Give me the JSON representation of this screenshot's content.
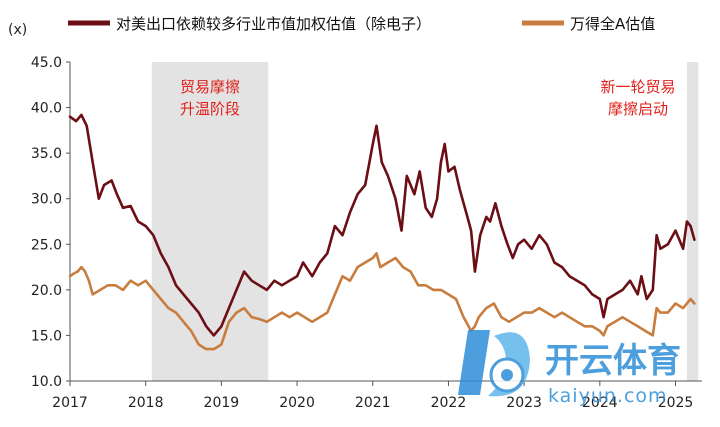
{
  "chart_data": {
    "type": "line",
    "ylabel": "(x)",
    "ylim": [
      10,
      45
    ],
    "yticks": [
      "45.0",
      "40.0",
      "35.0",
      "30.0",
      "25.0",
      "20.0",
      "15.0",
      "10.0"
    ],
    "ytick_values": [
      45,
      40,
      35,
      30,
      25,
      20,
      15,
      10
    ],
    "xlim": [
      2017.0,
      2025.35
    ],
    "xticks": [
      "2017",
      "2018",
      "2019",
      "2020",
      "2021",
      "2022",
      "2023",
      "2024",
      "2025"
    ],
    "xtick_values": [
      2017,
      2018,
      2019,
      2020,
      2021,
      2022,
      2023,
      2024,
      2025
    ],
    "legend_position": "top",
    "shaded_periods": [
      {
        "label_lines": [
          "贸易摩擦",
          "升温阶段"
        ],
        "start": 2018.08,
        "end": 2019.62
      },
      {
        "label_lines": [
          "新一轮贸易",
          "摩擦启动"
        ],
        "start": 2025.15,
        "end": 2025.3
      }
    ],
    "series": [
      {
        "name": "对美出口依赖较多行业市值加权估值（除电子）",
        "color": "#6b0f14",
        "points": [
          [
            2017.0,
            39.0
          ],
          [
            2017.08,
            38.5
          ],
          [
            2017.15,
            39.2
          ],
          [
            2017.22,
            38.0
          ],
          [
            2017.3,
            34.0
          ],
          [
            2017.38,
            30.0
          ],
          [
            2017.45,
            31.5
          ],
          [
            2017.55,
            32.0
          ],
          [
            2017.62,
            30.5
          ],
          [
            2017.7,
            29.0
          ],
          [
            2017.8,
            29.2
          ],
          [
            2017.9,
            27.5
          ],
          [
            2018.0,
            27.0
          ],
          [
            2018.1,
            26.0
          ],
          [
            2018.2,
            24.0
          ],
          [
            2018.3,
            22.5
          ],
          [
            2018.4,
            20.5
          ],
          [
            2018.5,
            19.5
          ],
          [
            2018.6,
            18.5
          ],
          [
            2018.7,
            17.5
          ],
          [
            2018.8,
            16.0
          ],
          [
            2018.9,
            15.0
          ],
          [
            2019.0,
            16.0
          ],
          [
            2019.1,
            18.0
          ],
          [
            2019.2,
            20.0
          ],
          [
            2019.3,
            22.0
          ],
          [
            2019.4,
            21.0
          ],
          [
            2019.5,
            20.5
          ],
          [
            2019.6,
            20.0
          ],
          [
            2019.7,
            21.0
          ],
          [
            2019.8,
            20.5
          ],
          [
            2019.9,
            21.0
          ],
          [
            2020.0,
            21.5
          ],
          [
            2020.08,
            23.0
          ],
          [
            2020.2,
            21.5
          ],
          [
            2020.3,
            23.0
          ],
          [
            2020.4,
            24.0
          ],
          [
            2020.5,
            27.0
          ],
          [
            2020.6,
            26.0
          ],
          [
            2020.7,
            28.5
          ],
          [
            2020.8,
            30.5
          ],
          [
            2020.9,
            31.5
          ],
          [
            2021.0,
            36.0
          ],
          [
            2021.05,
            38.0
          ],
          [
            2021.12,
            34.0
          ],
          [
            2021.2,
            32.5
          ],
          [
            2021.3,
            30.0
          ],
          [
            2021.38,
            26.5
          ],
          [
            2021.45,
            32.5
          ],
          [
            2021.55,
            30.5
          ],
          [
            2021.62,
            33.0
          ],
          [
            2021.7,
            29.0
          ],
          [
            2021.78,
            28.0
          ],
          [
            2021.85,
            30.0
          ],
          [
            2021.9,
            34.0
          ],
          [
            2021.95,
            36.0
          ],
          [
            2022.0,
            33.0
          ],
          [
            2022.08,
            33.5
          ],
          [
            2022.15,
            31.0
          ],
          [
            2022.25,
            28.0
          ],
          [
            2022.3,
            26.5
          ],
          [
            2022.35,
            22.0
          ],
          [
            2022.42,
            26.0
          ],
          [
            2022.5,
            28.0
          ],
          [
            2022.55,
            27.5
          ],
          [
            2022.62,
            29.5
          ],
          [
            2022.7,
            27.0
          ],
          [
            2022.78,
            25.0
          ],
          [
            2022.85,
            23.5
          ],
          [
            2022.92,
            25.0
          ],
          [
            2023.0,
            25.5
          ],
          [
            2023.1,
            24.5
          ],
          [
            2023.2,
            26.0
          ],
          [
            2023.3,
            25.0
          ],
          [
            2023.4,
            23.0
          ],
          [
            2023.5,
            22.5
          ],
          [
            2023.6,
            21.5
          ],
          [
            2023.7,
            21.0
          ],
          [
            2023.8,
            20.5
          ],
          [
            2023.9,
            19.5
          ],
          [
            2024.0,
            19.0
          ],
          [
            2024.05,
            17.0
          ],
          [
            2024.1,
            19.0
          ],
          [
            2024.2,
            19.5
          ],
          [
            2024.3,
            20.0
          ],
          [
            2024.4,
            21.0
          ],
          [
            2024.5,
            19.5
          ],
          [
            2024.55,
            21.5
          ],
          [
            2024.62,
            19.0
          ],
          [
            2024.7,
            20.0
          ],
          [
            2024.75,
            26.0
          ],
          [
            2024.8,
            24.5
          ],
          [
            2024.9,
            25.0
          ],
          [
            2025.0,
            26.5
          ],
          [
            2025.1,
            24.5
          ],
          [
            2025.15,
            27.5
          ],
          [
            2025.2,
            27.0
          ],
          [
            2025.25,
            25.5
          ]
        ]
      },
      {
        "name": "万得全A估值",
        "color": "#c87d3f",
        "points": [
          [
            2017.0,
            21.5
          ],
          [
            2017.05,
            21.8
          ],
          [
            2017.1,
            22.0
          ],
          [
            2017.15,
            22.5
          ],
          [
            2017.2,
            22.0
          ],
          [
            2017.25,
            21.0
          ],
          [
            2017.3,
            19.5
          ],
          [
            2017.4,
            20.0
          ],
          [
            2017.5,
            20.5
          ],
          [
            2017.6,
            20.5
          ],
          [
            2017.7,
            20.0
          ],
          [
            2017.8,
            21.0
          ],
          [
            2017.9,
            20.5
          ],
          [
            2018.0,
            21.0
          ],
          [
            2018.1,
            20.0
          ],
          [
            2018.2,
            19.0
          ],
          [
            2018.3,
            18.0
          ],
          [
            2018.4,
            17.5
          ],
          [
            2018.5,
            16.5
          ],
          [
            2018.6,
            15.5
          ],
          [
            2018.7,
            14.0
          ],
          [
            2018.8,
            13.5
          ],
          [
            2018.9,
            13.5
          ],
          [
            2019.0,
            14.0
          ],
          [
            2019.1,
            16.5
          ],
          [
            2019.2,
            17.5
          ],
          [
            2019.3,
            18.0
          ],
          [
            2019.4,
            17.0
          ],
          [
            2019.5,
            16.8
          ],
          [
            2019.6,
            16.5
          ],
          [
            2019.7,
            17.0
          ],
          [
            2019.8,
            17.5
          ],
          [
            2019.9,
            17.0
          ],
          [
            2020.0,
            17.5
          ],
          [
            2020.1,
            17.0
          ],
          [
            2020.2,
            16.5
          ],
          [
            2020.3,
            17.0
          ],
          [
            2020.4,
            17.5
          ],
          [
            2020.5,
            19.5
          ],
          [
            2020.6,
            21.5
          ],
          [
            2020.7,
            21.0
          ],
          [
            2020.8,
            22.5
          ],
          [
            2020.9,
            23.0
          ],
          [
            2021.0,
            23.5
          ],
          [
            2021.05,
            24.0
          ],
          [
            2021.1,
            22.5
          ],
          [
            2021.2,
            23.0
          ],
          [
            2021.3,
            23.5
          ],
          [
            2021.4,
            22.5
          ],
          [
            2021.5,
            22.0
          ],
          [
            2021.6,
            20.5
          ],
          [
            2021.7,
            20.5
          ],
          [
            2021.8,
            20.0
          ],
          [
            2021.9,
            20.0
          ],
          [
            2022.0,
            19.5
          ],
          [
            2022.1,
            19.0
          ],
          [
            2022.2,
            17.0
          ],
          [
            2022.3,
            15.5
          ],
          [
            2022.35,
            16.0
          ],
          [
            2022.4,
            17.0
          ],
          [
            2022.5,
            18.0
          ],
          [
            2022.6,
            18.5
          ],
          [
            2022.7,
            17.0
          ],
          [
            2022.8,
            16.5
          ],
          [
            2022.9,
            17.0
          ],
          [
            2023.0,
            17.5
          ],
          [
            2023.1,
            17.5
          ],
          [
            2023.2,
            18.0
          ],
          [
            2023.3,
            17.5
          ],
          [
            2023.4,
            17.0
          ],
          [
            2023.5,
            17.5
          ],
          [
            2023.6,
            17.0
          ],
          [
            2023.7,
            16.5
          ],
          [
            2023.8,
            16.0
          ],
          [
            2023.9,
            16.0
          ],
          [
            2024.0,
            15.5
          ],
          [
            2024.05,
            15.0
          ],
          [
            2024.1,
            16.0
          ],
          [
            2024.2,
            16.5
          ],
          [
            2024.3,
            17.0
          ],
          [
            2024.4,
            16.5
          ],
          [
            2024.5,
            16.0
          ],
          [
            2024.6,
            15.5
          ],
          [
            2024.7,
            15.0
          ],
          [
            2024.75,
            18.0
          ],
          [
            2024.8,
            17.5
          ],
          [
            2024.9,
            17.5
          ],
          [
            2025.0,
            18.5
          ],
          [
            2025.1,
            18.0
          ],
          [
            2025.2,
            19.0
          ],
          [
            2025.25,
            18.5
          ]
        ]
      }
    ]
  },
  "watermark": {
    "title": "开云体育",
    "subtitle": "kaiyun.com"
  }
}
